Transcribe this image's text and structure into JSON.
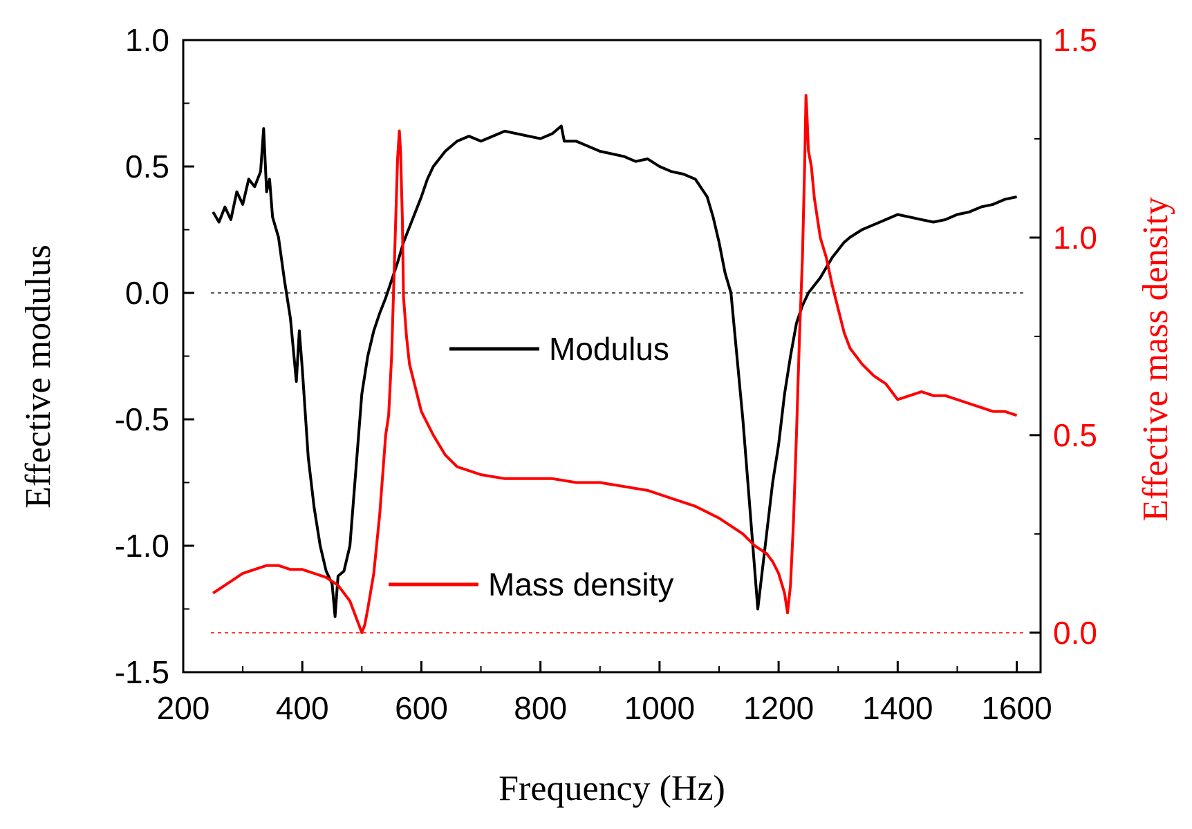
{
  "chart_data": {
    "type": "line",
    "title": "",
    "xlabel": "Frequency  (Hz)",
    "ylabel_left": "Effective modulus",
    "ylabel_right": "Effective mass density",
    "xlim": [
      200,
      1640
    ],
    "ylim_left": [
      -1.5,
      1.0
    ],
    "ylim_right": [
      -0.1,
      1.5
    ],
    "x_ticks": [
      200,
      400,
      600,
      800,
      1000,
      1200,
      1400,
      1600
    ],
    "x_tick_labels": [
      "200",
      "400",
      "600",
      "800",
      "1000",
      "1200",
      "1400",
      "1600"
    ],
    "y_left_ticks": [
      1.0,
      0.5,
      0.0,
      -0.5,
      -1.0,
      -1.5
    ],
    "y_left_tick_labels": [
      "1.0",
      "0.5",
      "0.0",
      "-0.5",
      "-1.0",
      "-1.5"
    ],
    "y_right_ticks": [
      1.5,
      1.0,
      0.5,
      0.0
    ],
    "y_right_tick_labels": [
      "1.5",
      "1.0",
      "0.5",
      "0.0"
    ],
    "reference_lines": [
      {
        "axis": "left",
        "y": 0.0,
        "color": "#555555",
        "style": "dashed"
      },
      {
        "axis": "right",
        "y": 0.0,
        "color": "#ff3333",
        "style": "dashed"
      }
    ],
    "colors": {
      "modulus": "#000000",
      "mass_density": "#ff0000",
      "right_axis": "#ff0000"
    },
    "series": [
      {
        "name": "Modulus",
        "axis": "left",
        "color": "#000000",
        "x": [
          250,
          260,
          270,
          280,
          290,
          300,
          310,
          320,
          330,
          335,
          340,
          345,
          350,
          360,
          370,
          380,
          390,
          395,
          400,
          410,
          420,
          430,
          440,
          450,
          455,
          460,
          470,
          480,
          490,
          500,
          510,
          520,
          530,
          540,
          550,
          560,
          570,
          580,
          590,
          600,
          610,
          620,
          640,
          660,
          680,
          700,
          720,
          740,
          760,
          780,
          800,
          820,
          835,
          840,
          860,
          880,
          900,
          920,
          940,
          960,
          980,
          1000,
          1020,
          1040,
          1060,
          1080,
          1090,
          1100,
          1110,
          1120,
          1130,
          1140,
          1150,
          1160,
          1165,
          1170,
          1180,
          1190,
          1200,
          1210,
          1220,
          1230,
          1240,
          1250,
          1260,
          1270,
          1280,
          1290,
          1300,
          1310,
          1320,
          1340,
          1360,
          1380,
          1400,
          1420,
          1440,
          1460,
          1480,
          1500,
          1520,
          1540,
          1560,
          1580,
          1600
        ],
        "y": [
          0.32,
          0.28,
          0.34,
          0.29,
          0.4,
          0.35,
          0.45,
          0.42,
          0.48,
          0.65,
          0.4,
          0.45,
          0.3,
          0.22,
          0.05,
          -0.1,
          -0.35,
          -0.15,
          -0.3,
          -0.65,
          -0.85,
          -1.0,
          -1.1,
          -1.15,
          -1.28,
          -1.12,
          -1.1,
          -1.0,
          -0.7,
          -0.4,
          -0.25,
          -0.15,
          -0.08,
          -0.02,
          0.05,
          0.12,
          0.2,
          0.26,
          0.32,
          0.38,
          0.45,
          0.5,
          0.56,
          0.6,
          0.62,
          0.6,
          0.62,
          0.64,
          0.63,
          0.62,
          0.61,
          0.63,
          0.66,
          0.6,
          0.6,
          0.58,
          0.56,
          0.55,
          0.54,
          0.52,
          0.53,
          0.5,
          0.48,
          0.47,
          0.45,
          0.38,
          0.3,
          0.2,
          0.08,
          0.0,
          -0.25,
          -0.5,
          -0.8,
          -1.1,
          -1.25,
          -1.15,
          -0.95,
          -0.75,
          -0.6,
          -0.4,
          -0.25,
          -0.12,
          -0.05,
          0.0,
          0.03,
          0.06,
          0.1,
          0.14,
          0.17,
          0.2,
          0.22,
          0.25,
          0.27,
          0.29,
          0.31,
          0.3,
          0.29,
          0.28,
          0.29,
          0.31,
          0.32,
          0.34,
          0.35,
          0.37,
          0.38
        ]
      },
      {
        "name": "Mass density",
        "axis": "right",
        "color": "#ff0000",
        "x": [
          250,
          260,
          280,
          300,
          320,
          340,
          360,
          380,
          400,
          420,
          440,
          460,
          480,
          490,
          500,
          505,
          510,
          520,
          530,
          540,
          545,
          550,
          555,
          560,
          563,
          565,
          568,
          570,
          575,
          580,
          590,
          600,
          620,
          640,
          660,
          700,
          740,
          780,
          820,
          860,
          900,
          940,
          980,
          1020,
          1060,
          1100,
          1140,
          1160,
          1180,
          1190,
          1200,
          1210,
          1215,
          1220,
          1225,
          1230,
          1235,
          1240,
          1244,
          1246,
          1248,
          1250,
          1255,
          1260,
          1270,
          1280,
          1290,
          1300,
          1310,
          1320,
          1330,
          1340,
          1360,
          1380,
          1400,
          1420,
          1440,
          1460,
          1480,
          1500,
          1520,
          1540,
          1560,
          1580,
          1600
        ],
        "y": [
          0.1,
          0.11,
          0.13,
          0.15,
          0.16,
          0.17,
          0.17,
          0.16,
          0.16,
          0.15,
          0.14,
          0.12,
          0.08,
          0.04,
          0.0,
          0.02,
          0.06,
          0.15,
          0.3,
          0.5,
          0.55,
          0.7,
          0.95,
          1.2,
          1.27,
          1.22,
          1.05,
          0.85,
          0.75,
          0.68,
          0.62,
          0.56,
          0.5,
          0.45,
          0.42,
          0.4,
          0.39,
          0.39,
          0.39,
          0.38,
          0.38,
          0.37,
          0.36,
          0.34,
          0.32,
          0.29,
          0.25,
          0.22,
          0.2,
          0.18,
          0.15,
          0.1,
          0.05,
          0.12,
          0.28,
          0.5,
          0.75,
          0.95,
          1.2,
          1.36,
          1.3,
          1.22,
          1.18,
          1.1,
          1.0,
          0.95,
          0.88,
          0.82,
          0.76,
          0.72,
          0.7,
          0.68,
          0.65,
          0.63,
          0.59,
          0.6,
          0.61,
          0.6,
          0.6,
          0.59,
          0.58,
          0.57,
          0.56,
          0.56,
          0.55
        ]
      }
    ],
    "legend": [
      {
        "label": "Modulus",
        "color": "#000000"
      },
      {
        "label": "Mass density",
        "color": "#ff0000"
      }
    ]
  }
}
